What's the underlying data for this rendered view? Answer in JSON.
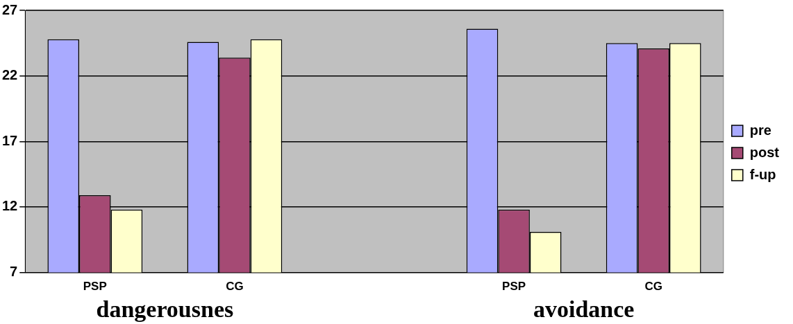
{
  "chart_data": {
    "type": "bar",
    "categories": [
      "PSP",
      "CG",
      null,
      "PSP",
      "CG"
    ],
    "series": [
      {
        "name": "pre",
        "color": "#a9aaff",
        "values": [
          24.8,
          24.6,
          null,
          25.6,
          24.5
        ]
      },
      {
        "name": "post",
        "color": "#a54a74",
        "values": [
          12.9,
          23.4,
          null,
          11.8,
          24.1
        ]
      },
      {
        "name": "f-up",
        "color": "#ffffcc",
        "values": [
          11.8,
          24.8,
          null,
          10.1,
          24.5
        ]
      }
    ],
    "ylim": [
      7,
      27
    ],
    "yticks": [
      7,
      12,
      17,
      22,
      27
    ],
    "grid": "y",
    "legend": "right",
    "annotations": [
      "dangerousnes",
      "avoidance"
    ]
  }
}
